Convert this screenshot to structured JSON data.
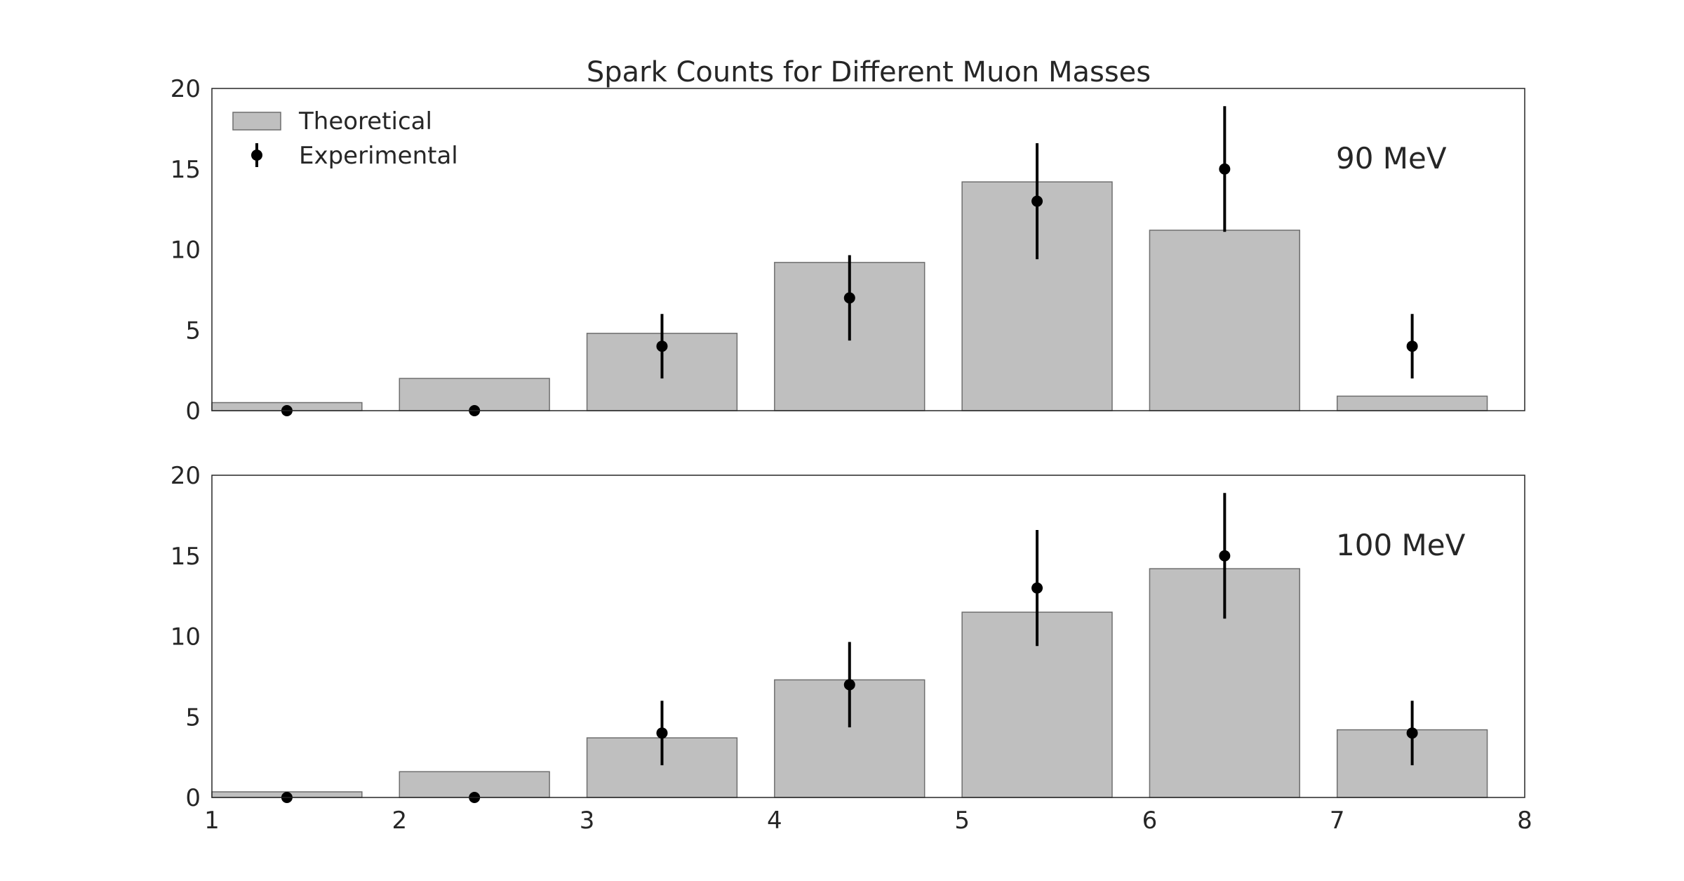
{
  "figure": {
    "title": "Spark Counts for Different Muon Masses"
  },
  "legend": {
    "placement": "upper-left of top panel",
    "entries": [
      {
        "label": "Theoretical",
        "marker": "bar"
      },
      {
        "label": "Experimental",
        "marker": "errorbar-point"
      }
    ]
  },
  "colors": {
    "bar_fill": "#bfbfbf",
    "bar_edge": "#6e6e6e",
    "point": "#000000",
    "axis": "#262626",
    "text": "#262626"
  },
  "chart_data": [
    {
      "type": "bar",
      "annotation": "90 MeV",
      "xlim": [
        1,
        8
      ],
      "ylim": [
        0,
        20
      ],
      "xticks": [
        "1",
        "2",
        "3",
        "4",
        "5",
        "6",
        "7",
        "8"
      ],
      "yticks": [
        "0",
        "5",
        "10",
        "15",
        "20"
      ],
      "grid": false,
      "bar_width": 0.8,
      "bars": {
        "name": "Theoretical",
        "x": [
          1,
          2,
          3,
          4,
          5,
          6,
          7
        ],
        "values": [
          0.5,
          2.0,
          4.8,
          9.2,
          14.2,
          11.2,
          0.9
        ]
      },
      "points": {
        "name": "Experimental",
        "x": [
          1.4,
          2.4,
          3.4,
          4.4,
          5.4,
          6.4,
          7.4
        ],
        "y": [
          0,
          0,
          4,
          7,
          13,
          15,
          4
        ],
        "err": [
          0,
          0,
          2.0,
          2.65,
          3.6,
          3.9,
          2.0
        ]
      }
    },
    {
      "type": "bar",
      "annotation": "100 MeV",
      "xlim": [
        1,
        8
      ],
      "ylim": [
        0,
        20
      ],
      "xticks": [
        "1",
        "2",
        "3",
        "4",
        "5",
        "6",
        "7",
        "8"
      ],
      "yticks": [
        "0",
        "5",
        "10",
        "15",
        "20"
      ],
      "grid": false,
      "bar_width": 0.8,
      "bars": {
        "name": "Theoretical",
        "x": [
          1,
          2,
          3,
          4,
          5,
          6,
          7
        ],
        "values": [
          0.35,
          1.6,
          3.7,
          7.3,
          11.5,
          14.2,
          4.2
        ]
      },
      "points": {
        "name": "Experimental",
        "x": [
          1.4,
          2.4,
          3.4,
          4.4,
          5.4,
          6.4,
          7.4
        ],
        "y": [
          0,
          0,
          4,
          7,
          13,
          15,
          4
        ],
        "err": [
          0,
          0,
          2.0,
          2.65,
          3.6,
          3.9,
          2.0
        ]
      }
    }
  ]
}
